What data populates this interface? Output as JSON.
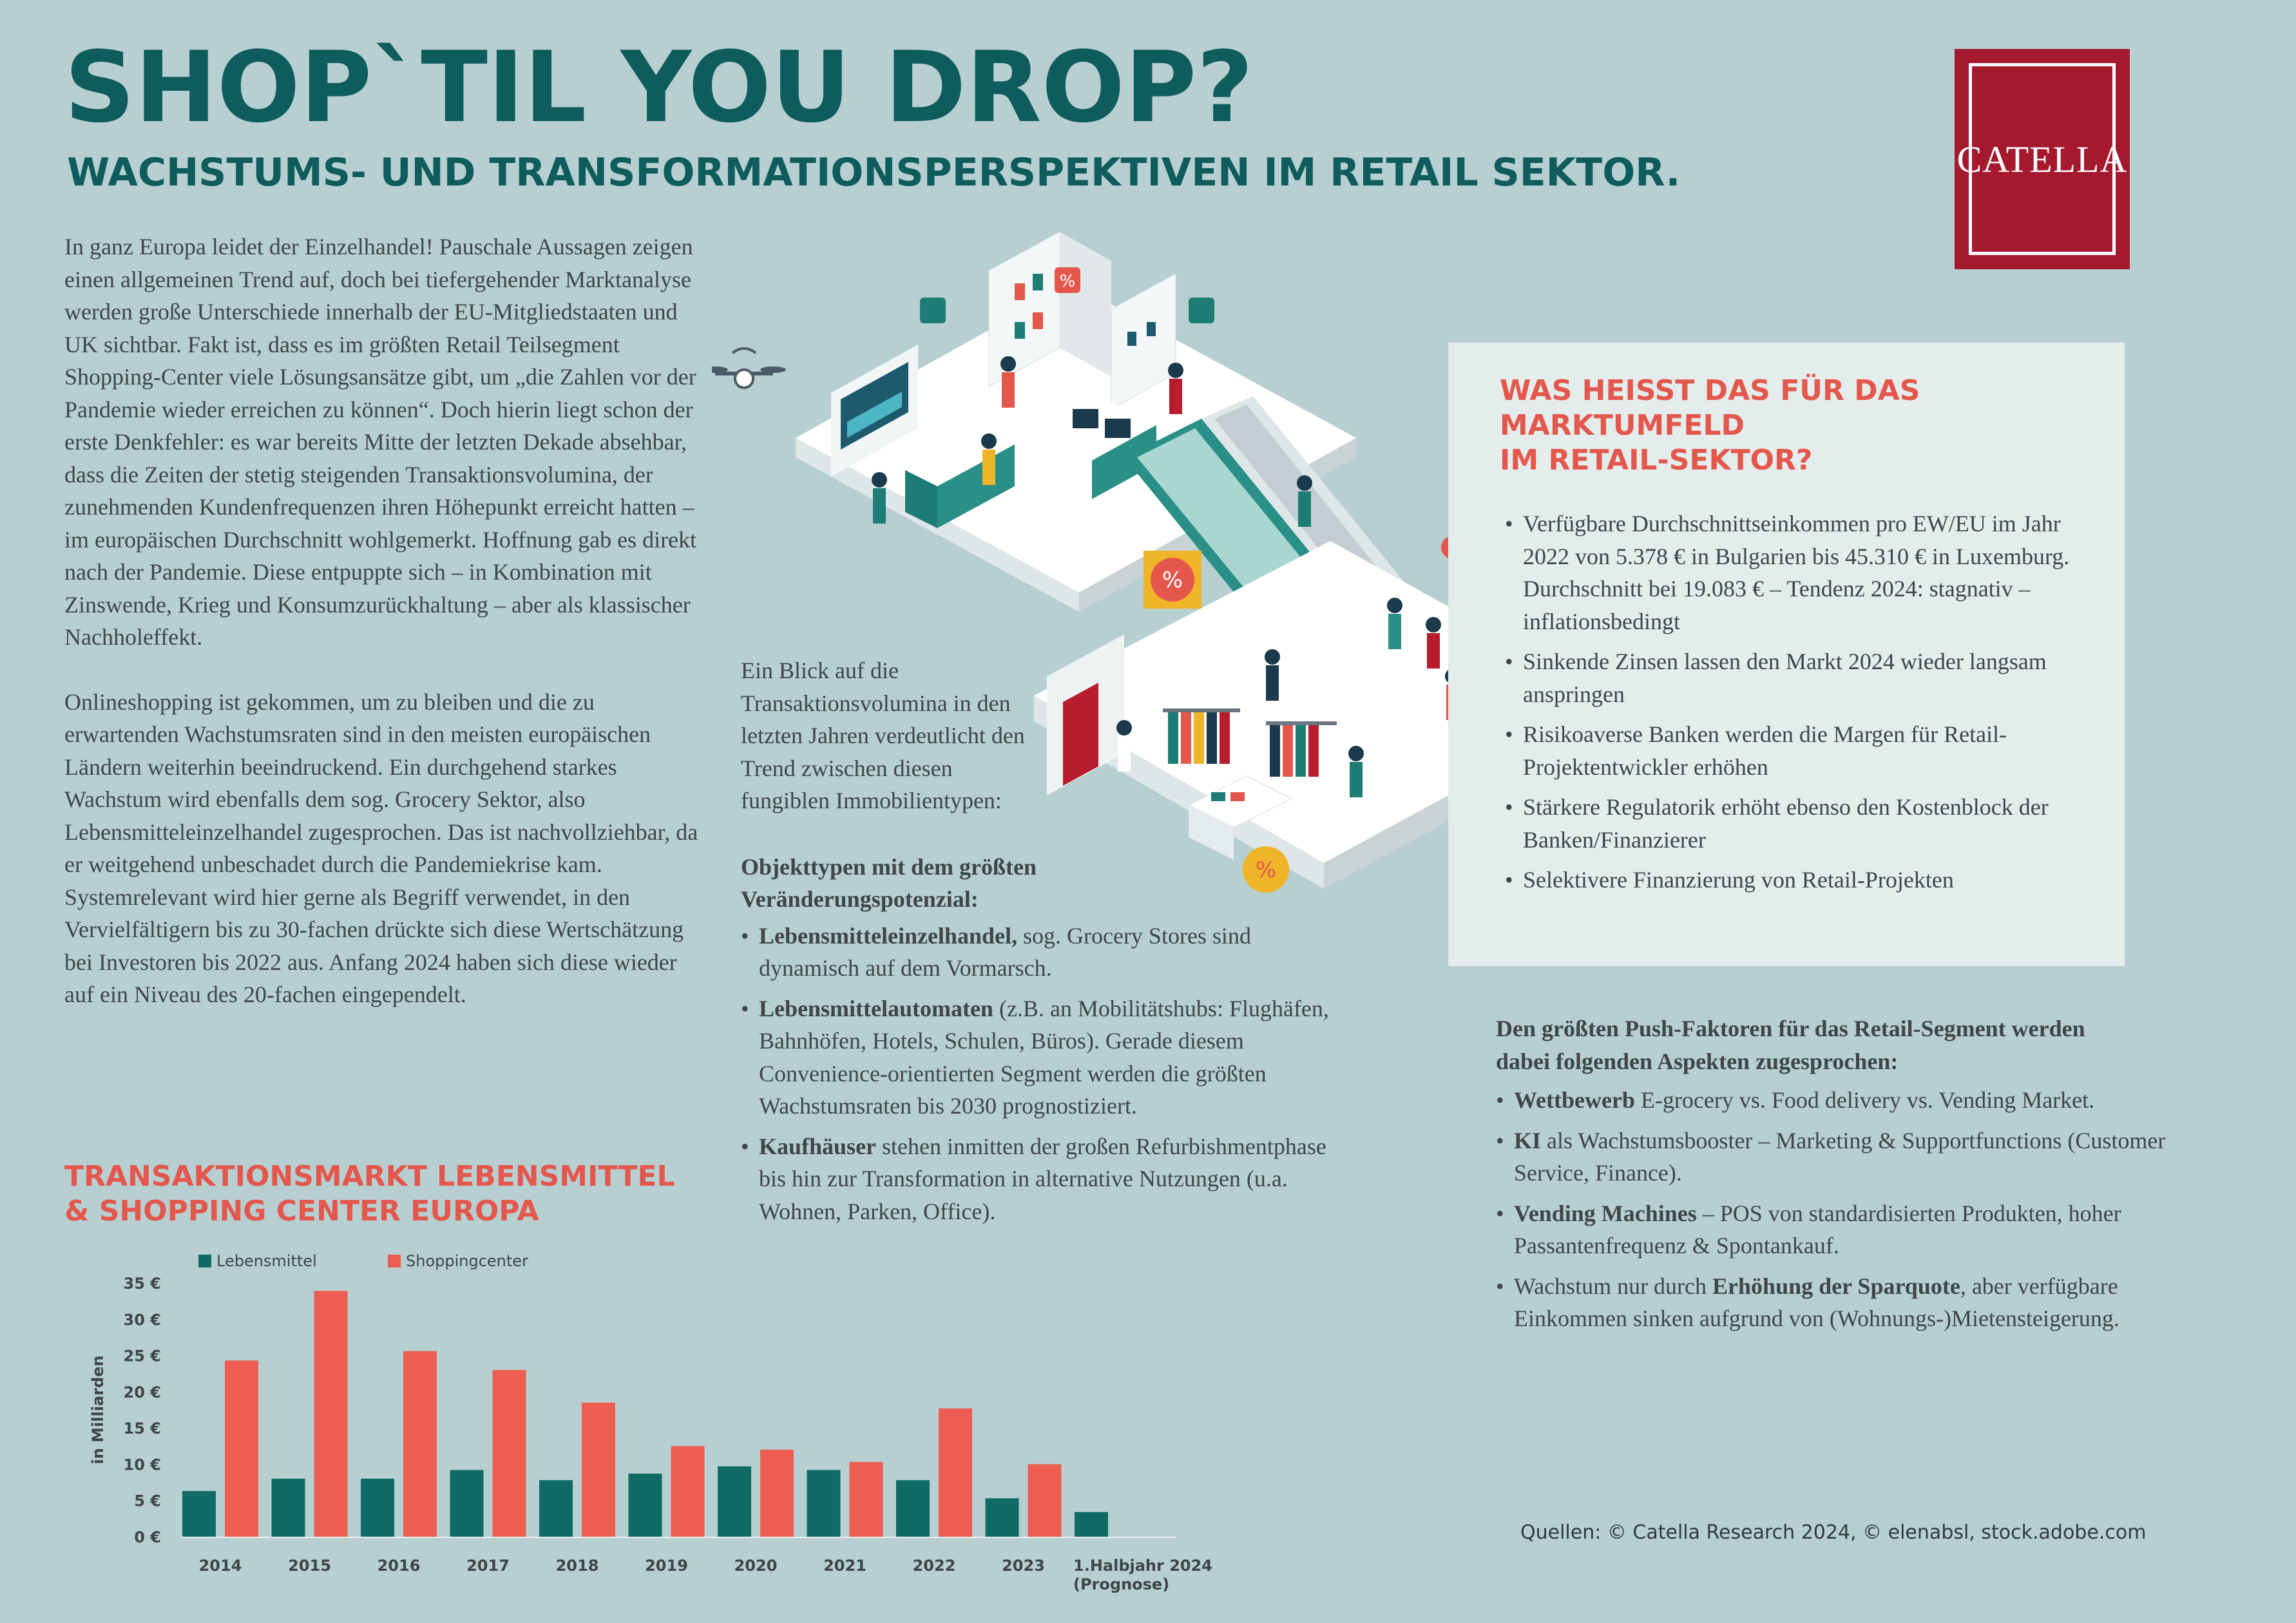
{
  "header": {
    "title": "SHOP`TIL YOU DROP?",
    "subtitle": "WACHSTUMS- UND TRANSFORMATIONSPERSPEKTIVEN IM RETAIL SEKTOR."
  },
  "logo": {
    "text": "CATELLA",
    "color": "#a5192f"
  },
  "intro": {
    "p1": "In ganz Europa leidet der Einzelhandel! Pauschale Aussagen zeigen einen allgemeinen Trend auf, doch bei tiefergehender Marktanalyse werden große Unterschiede innerhalb der EU-Mitgliedstaaten und UK sichtbar. Fakt ist, dass es im größten Retail Teilsegment Shopping-Center viele Lösungsansätze gibt, um „die Zahlen vor der Pandemie wieder erreichen zu können“. Doch hierin liegt schon der erste Denkfehler: es war bereits Mitte der letzten Dekade absehbar, dass die Zeiten der stetig steigenden Transaktionsvolumina, der zunehmenden Kundenfrequenzen ihren Höhepunkt erreicht hatten – im europäischen Durchschnitt wohlgemerkt. Hoffnung gab es direkt nach der Pandemie. Diese entpuppte sich – in Kombination mit Zinswende, Krieg und Konsumzurückhaltung – aber als klassischer Nachholeffekt.",
    "p2": "Onlineshopping ist gekommen, um zu bleiben und die zu erwartenden Wachstumsraten sind in den meisten europäischen Ländern weiterhin beeindruckend. Ein durchgehend starkes Wachstum wird ebenfalls dem sog. Grocery Sektor, also Lebensmitteleinzelhandel zugesprochen. Das ist nachvollziehbar, da er weitgehend unbeschadet durch die Pandemiekrise kam. Systemrelevant wird hier gerne als Begriff verwendet, in den Vervielfältigern bis zu 30-fachen drückte sich diese Wertschätzung bei Investoren bis 2022 aus. Anfang 2024 haben sich diese wieder auf ein Niveau des 20-fachen eingependelt."
  },
  "middle": {
    "intro": "Ein Blick auf die Transaktionsvolumina in den letzten Jahren verdeutlicht den Trend zwischen diesen fungiblen Immobilientypen:",
    "heading": "Objekttypen mit dem größten Veränderungspotenzial:",
    "items": [
      {
        "bold": "Lebensmitteleinzelhandel,",
        "text": " sog. Grocery Stores sind dynamisch auf dem Vormarsch."
      },
      {
        "bold": "Lebensmittelautomaten",
        "text": " (z.B. an Mobilitätshubs: Flughäfen, Bahnhöfen, Hotels, Schulen, Büros). Gerade diesem Convenience-orientierten Segment werden die größten Wachstumsraten bis 2030 prognostiziert."
      },
      {
        "bold": "Kaufhäuser",
        "text": " stehen inmitten der großen Refurbishmentphase bis hin zur Transformation in alternative Nutzungen (u.a. Wohnen, Parken, Office)."
      }
    ]
  },
  "box": {
    "title_line1": "WAS HEISST DAS FÜR DAS",
    "title_line2": "MARKTUMFELD",
    "title_line3": "IM RETAIL-SEKTOR?",
    "items": [
      "Verfügbare Durchschnittseinkommen pro EW/EU im Jahr 2022 von 5.378 € in Bulgarien bis 45.310 € in Luxemburg. Durchschnitt bei 19.083 € – Tendenz 2024: stagnativ – inflationsbedingt",
      "Sinkende Zinsen lassen den Markt 2024 wieder langsam anspringen",
      "Risikoaverse Banken werden die Margen für Retail-Projektentwickler erhöhen",
      "Stärkere Regulatorik erhöht ebenso den Kostenblock der Banken/Finanzierer",
      "Selektivere Finanzierung von Retail-Projekten"
    ]
  },
  "push": {
    "heading": "Den größten Push-Faktoren für das Retail-Segment werden dabei folgenden Aspekten zugesprochen:",
    "items": [
      {
        "bold": "Wettbewerb",
        "pre": "",
        "text": " E-grocery vs. Food delivery vs. Vending Market."
      },
      {
        "bold": "KI",
        "pre": "",
        "text": " als Wachstumsbooster – Marketing & Supportfunctions (Customer Service, Finance)."
      },
      {
        "bold": "Vending Machines",
        "pre": "",
        "text": " – POS von standardisierten Produkten, hoher Passantenfrequenz & Spontankauf."
      },
      {
        "bold": "Erhöhung der Sparquote",
        "pre": "Wachstum nur durch ",
        "text": ", aber verfügbare Einkommen sinken aufgrund von (Wohnungs-)Mietensteigerung."
      }
    ]
  },
  "sources": "Quellen: © Catella Research 2024, © elenabsl, stock.adobe.com",
  "chart_title": {
    "line1": "TRANSAKTIONSMARKT LEBENSMITTEL",
    "line2": "& SHOPPING CENTER EUROPA"
  },
  "chart_data": {
    "type": "bar",
    "title": "TRANSAKTIONSMARKT LEBENSMITTEL & SHOPPING CENTER EUROPA",
    "ylabel": "in Milliarden",
    "xlabel": "",
    "ylim": [
      0,
      35
    ],
    "yticks": [
      "0 €",
      "5 €",
      "10 €",
      "15 €",
      "20 €",
      "25 €",
      "30 €",
      "35 €"
    ],
    "legend_position": "top-left",
    "categories": [
      "2014",
      "2015",
      "2016",
      "2017",
      "2018",
      "2019",
      "2020",
      "2021",
      "2022",
      "2023",
      "1.Halbjahr 2024"
    ],
    "category_notes": [
      "",
      "",
      "",
      "",
      "",
      "",
      "",
      "",
      "",
      "",
      "(Prognose)"
    ],
    "series": [
      {
        "name": "Lebensmittel",
        "color": "#0f6b63",
        "values": [
          6.3,
          8.0,
          8.0,
          9.2,
          7.8,
          8.7,
          9.7,
          9.2,
          7.8,
          5.3,
          3.4
        ]
      },
      {
        "name": "Shoppingcenter",
        "color": "#ec5e51",
        "values": [
          24.3,
          33.9,
          25.6,
          23.0,
          18.5,
          12.5,
          12.0,
          10.3,
          17.7,
          10.0,
          null
        ]
      }
    ]
  }
}
